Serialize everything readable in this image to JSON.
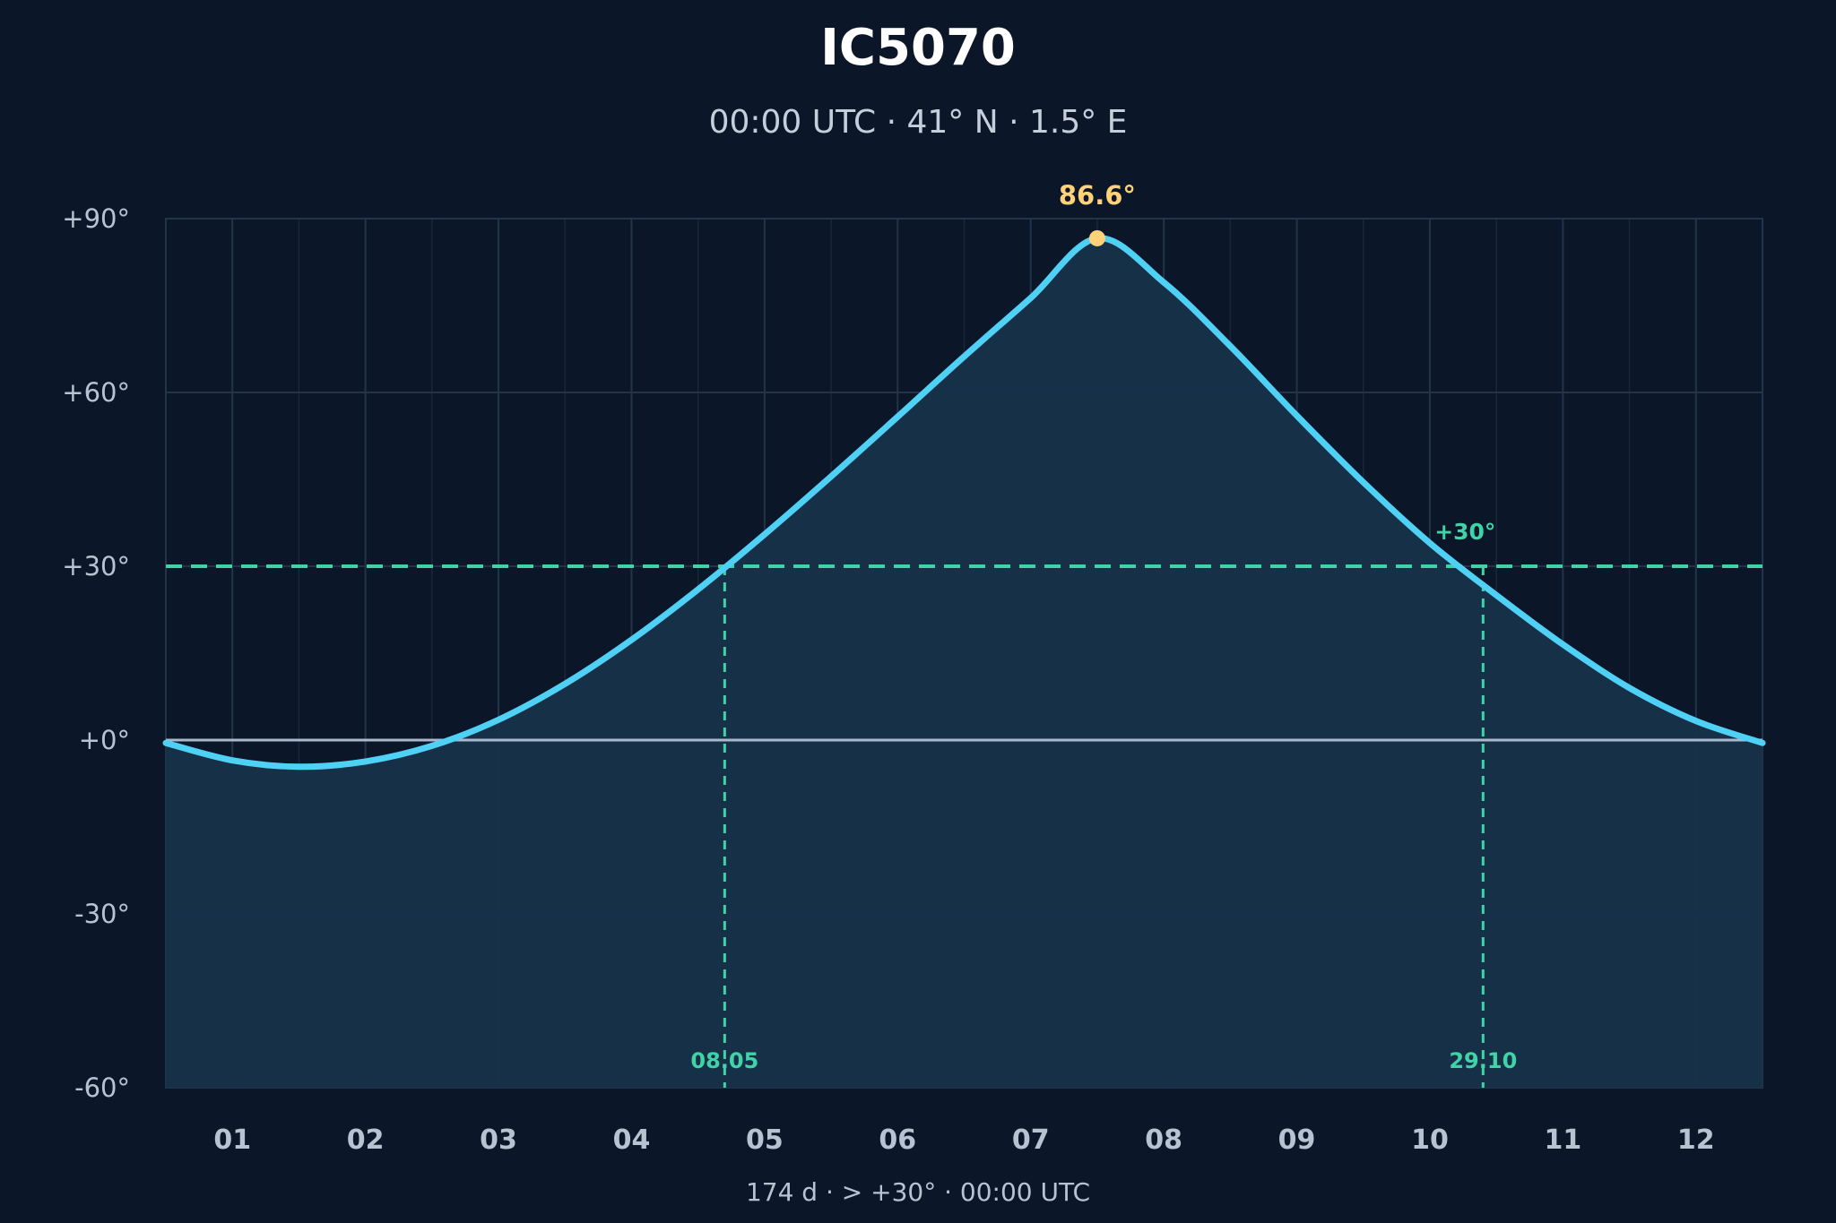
{
  "title": "IC5070",
  "subtitle": "00:00 UTC · 41° N · 1.5° E",
  "footer": "174 d  ·  > +30°  ·  00:00 UTC",
  "colors": {
    "background": "#0b1628",
    "curve": "#4fd1f5",
    "fill": "#17324a",
    "threshold": "#40d3a8",
    "peak": "#ffd27a",
    "horizon": "#a9b8cc",
    "grid": "#22344a"
  },
  "chart_data": {
    "type": "area",
    "title": "IC5070",
    "subtitle": "00:00 UTC · 41° N · 1.5° E",
    "xlabel": "",
    "ylabel": "",
    "x_unit": "month",
    "xlim": [
      0.5,
      12.5
    ],
    "ylim": [
      -60,
      90
    ],
    "grid": true,
    "legend": "none",
    "x_ticks": [
      "01",
      "02",
      "03",
      "04",
      "05",
      "06",
      "07",
      "08",
      "09",
      "10",
      "11",
      "12"
    ],
    "y_ticks": [
      "-60°",
      "-30°",
      "+0°",
      "+30°",
      "+60°",
      "+90°"
    ],
    "y_tick_values": [
      -60,
      -30,
      0,
      30,
      60,
      90
    ],
    "series": [
      {
        "x": [
          0.5,
          1.0,
          1.5,
          2.0,
          2.5,
          3.0,
          3.5,
          4.0,
          4.5,
          5.0,
          5.5,
          6.0,
          6.5,
          7.0,
          7.5,
          8.0,
          8.5,
          9.0,
          9.5,
          10.0,
          10.5,
          11.0,
          11.5,
          12.0,
          12.5
        ],
        "y": [
          -0.5,
          -3.5,
          -4.6,
          -3.7,
          -1.0,
          3.5,
          9.7,
          17.3,
          26.0,
          35.5,
          45.5,
          55.8,
          66.2,
          76.3,
          86.6,
          79.0,
          68.0,
          56.0,
          44.5,
          34.0,
          25.0,
          16.5,
          9.0,
          3.3,
          -0.5
        ]
      }
    ],
    "peak": {
      "x": 7.5,
      "value": 86.6,
      "label": "86.6°"
    },
    "threshold": {
      "value": 30,
      "label": "+30°"
    },
    "crossings": [
      {
        "x": 4.7,
        "label": "08.05"
      },
      {
        "x": 10.4,
        "label": "29.10"
      }
    ]
  }
}
